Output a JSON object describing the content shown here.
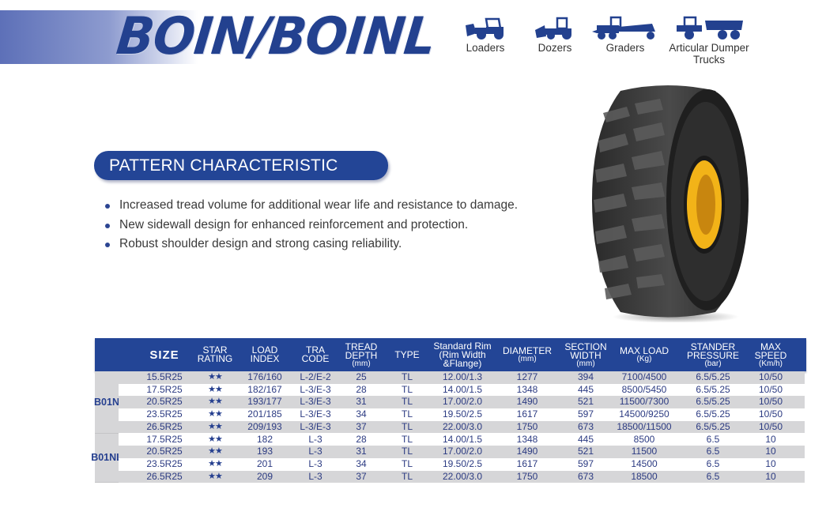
{
  "header": {
    "title": "BOIN/BOINL"
  },
  "applications": [
    {
      "label": "Loaders",
      "icon": "loader-icon"
    },
    {
      "label": "Dozers",
      "icon": "dozer-icon"
    },
    {
      "label": "Graders",
      "icon": "grader-icon"
    },
    {
      "label_line1": "Articular Dumper",
      "label_line2": "Trucks",
      "icon": "dumper-truck-icon"
    }
  ],
  "pattern": {
    "heading": "PATTERN CHARACTERISTIC",
    "bullets": [
      "Increased tread volume for additional wear life and resistance to damage.",
      "New sidewall design for enhanced reinforcement and protection.",
      "Robust shoulder design and strong casing reliability."
    ]
  },
  "colors": {
    "brand_blue": "#234596",
    "row_gray": "#d6d6d8",
    "rim_yellow": "#f2b318"
  },
  "table": {
    "headers": {
      "size": "SIZE",
      "star": [
        "STAR",
        "RATING"
      ],
      "load_index": [
        "LOAD",
        "INDEX"
      ],
      "tra": [
        "TRA",
        "CODE"
      ],
      "tread": [
        "TREAD",
        "DEPTH",
        "(mm)"
      ],
      "type": "TYPE",
      "rim": [
        "Standard Rim",
        "(Rim Width",
        "&Flange)"
      ],
      "diameter": [
        "DIAMETER",
        "(mm)"
      ],
      "section": [
        "SECTION",
        "WIDTH",
        "(mm)"
      ],
      "max_load": [
        "MAX LOAD",
        "(Kg)"
      ],
      "pressure": [
        "STANDER",
        "PRESSURE",
        "(bar)"
      ],
      "speed": [
        "MAX",
        "SPEED",
        "(Km/h)"
      ]
    },
    "groups": [
      {
        "name": "B01N",
        "rows": [
          [
            "15.5R25",
            "★★",
            "176/160",
            "L-2/E-2",
            "25",
            "TL",
            "12.00/1.3",
            "1277",
            "394",
            "7100/4500",
            "6.5/5.25",
            "10/50"
          ],
          [
            "17.5R25",
            "★★",
            "182/167",
            "L-3/E-3",
            "28",
            "TL",
            "14.00/1.5",
            "1348",
            "445",
            "8500/5450",
            "6.5/5.25",
            "10/50"
          ],
          [
            "20.5R25",
            "★★",
            "193/177",
            "L-3/E-3",
            "31",
            "TL",
            "17.00/2.0",
            "1490",
            "521",
            "11500/7300",
            "6.5/5.25",
            "10/50"
          ],
          [
            "23.5R25",
            "★★",
            "201/185",
            "L-3/E-3",
            "34",
            "TL",
            "19.50/2.5",
            "1617",
            "597",
            "14500/9250",
            "6.5/5.25",
            "10/50"
          ],
          [
            "26.5R25",
            "★★",
            "209/193",
            "L-3/E-3",
            "37",
            "TL",
            "22.00/3.0",
            "1750",
            "673",
            "18500/11500",
            "6.5/5.25",
            "10/50"
          ]
        ]
      },
      {
        "name": "B01NL",
        "rows": [
          [
            "17.5R25",
            "★★",
            "182",
            "L-3",
            "28",
            "TL",
            "14.00/1.5",
            "1348",
            "445",
            "8500",
            "6.5",
            "10"
          ],
          [
            "20.5R25",
            "★★",
            "193",
            "L-3",
            "31",
            "TL",
            "17.00/2.0",
            "1490",
            "521",
            "11500",
            "6.5",
            "10"
          ],
          [
            "23.5R25",
            "★★",
            "201",
            "L-3",
            "34",
            "TL",
            "19.50/2.5",
            "1617",
            "597",
            "14500",
            "6.5",
            "10"
          ],
          [
            "26.5R25",
            "★★",
            "209",
            "L-3",
            "37",
            "TL",
            "22.00/3.0",
            "1750",
            "673",
            "18500",
            "6.5",
            "10"
          ]
        ]
      }
    ]
  }
}
